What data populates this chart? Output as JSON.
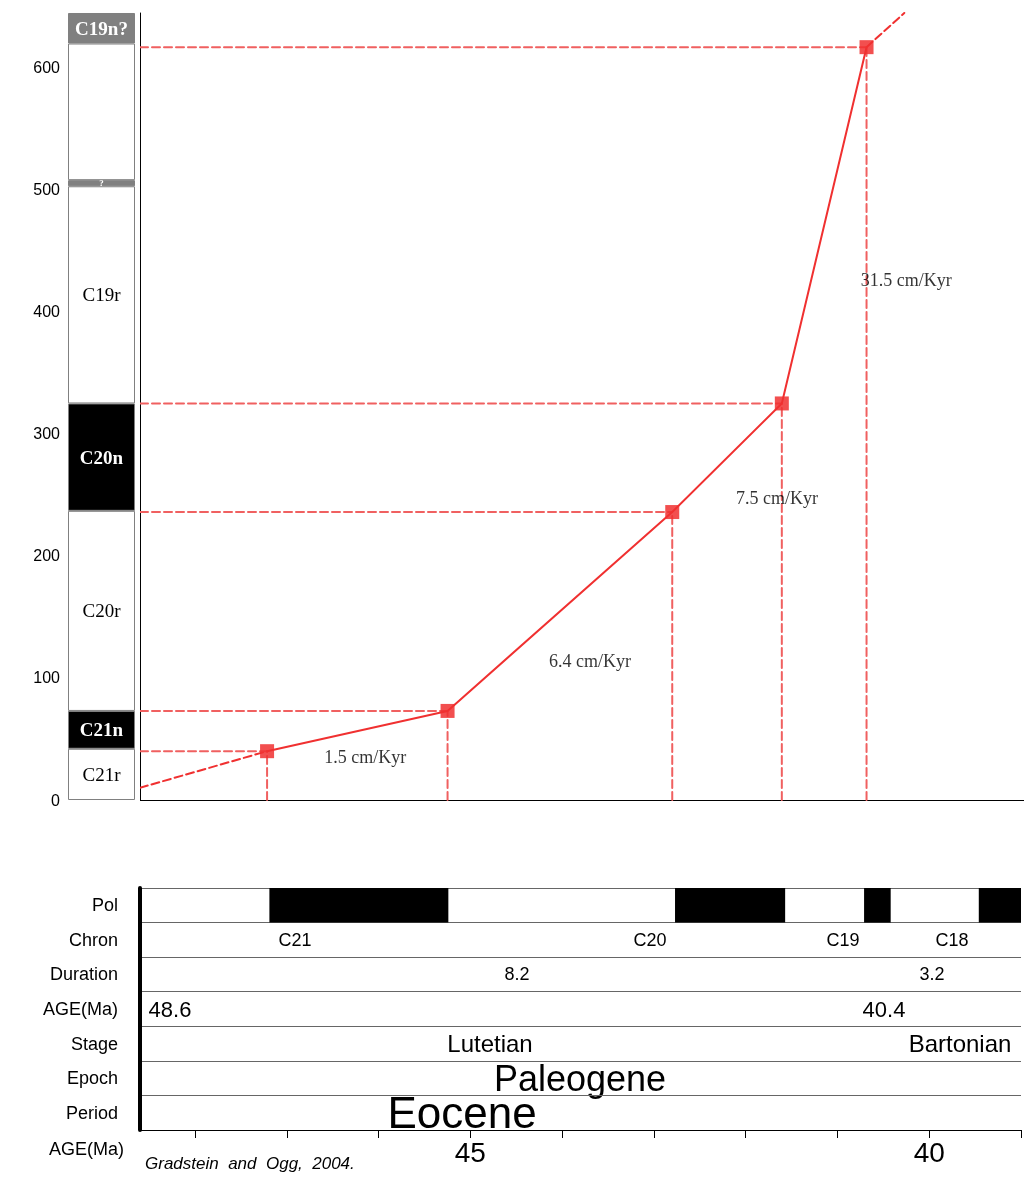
{
  "chart_data": [
    {
      "type": "line",
      "xlim": [
        48.6,
        39.0
      ],
      "ylim": [
        0,
        645
      ],
      "grid": false,
      "legend": false,
      "marker": "square",
      "series": [
        {
          "color": "#f03030",
          "x": [
            47.22,
            45.26,
            42.82,
            41.63,
            40.71
          ],
          "values": [
            40,
            73,
            236,
            325,
            617
          ],
          "line_style": "solid"
        },
        {
          "color": "#f03030",
          "x": [
            48.6,
            47.22
          ],
          "values": [
            10,
            40
          ],
          "line_style": "dashed",
          "marker": "none"
        },
        {
          "color": "#f03030",
          "x": [
            40.71,
            40.3
          ],
          "values": [
            617,
            645
          ],
          "line_style": "dashed",
          "marker": "none"
        },
        {
          "color": "#f06060",
          "x": [
            47.22,
            47.22
          ],
          "values": [
            0,
            40
          ],
          "line_style": "dashed",
          "marker": "none"
        },
        {
          "color": "#f06060",
          "x": [
            45.26,
            45.26
          ],
          "values": [
            0,
            73
          ],
          "line_style": "dashed",
          "marker": "none"
        },
        {
          "color": "#f06060",
          "x": [
            42.82,
            42.82
          ],
          "values": [
            0,
            236
          ],
          "line_style": "dashed",
          "marker": "none"
        },
        {
          "color": "#f06060",
          "x": [
            41.63,
            41.63
          ],
          "values": [
            0,
            325
          ],
          "line_style": "dashed",
          "marker": "none"
        },
        {
          "color": "#f06060",
          "x": [
            40.71,
            40.71
          ],
          "values": [
            0,
            617
          ],
          "line_style": "dashed",
          "marker": "none"
        },
        {
          "color": "#f06060",
          "x": [
            48.6,
            47.22
          ],
          "values": [
            40,
            40
          ],
          "line_style": "dashed",
          "marker": "none"
        },
        {
          "color": "#f06060",
          "x": [
            48.6,
            45.26
          ],
          "values": [
            73,
            73
          ],
          "line_style": "dashed",
          "marker": "none"
        },
        {
          "color": "#f06060",
          "x": [
            48.6,
            42.82
          ],
          "values": [
            236,
            236
          ],
          "line_style": "dashed",
          "marker": "none"
        },
        {
          "color": "#f06060",
          "x": [
            48.6,
            41.63
          ],
          "values": [
            325,
            325
          ],
          "line_style": "dashed",
          "marker": "none"
        },
        {
          "color": "#f06060",
          "x": [
            48.6,
            40.71
          ],
          "values": [
            617,
            617
          ],
          "line_style": "dashed",
          "marker": "none"
        }
      ],
      "annotations": [
        "1.5 cm/Kyr",
        "6.4 cm/Kyr",
        "7.5 cm/Kyr",
        "31.5 cm/Kyr"
      ]
    },
    {
      "type": "bar",
      "stacked": true,
      "categories": [
        null
      ],
      "ylim": [
        0,
        645
      ],
      "yticks": [
        0,
        100,
        200,
        300,
        400,
        500,
        600
      ],
      "tick_labels": "y",
      "grid": false,
      "legend": false,
      "series": [
        {
          "name": "C21r",
          "color": "#ffffff",
          "values": [
            42
          ]
        },
        {
          "name": "C21n",
          "color": "#000000",
          "values": [
            31
          ]
        },
        {
          "name": "C20r",
          "color": "#ffffff",
          "values": [
            164
          ]
        },
        {
          "name": "C20n",
          "color": "#000000",
          "values": [
            88
          ]
        },
        {
          "name": "C19r",
          "color": "#ffffff",
          "values": [
            178
          ]
        },
        {
          "name": "?",
          "color": "#808080",
          "values": [
            5
          ]
        },
        {
          "color": "#ffffff",
          "values": [
            112
          ]
        },
        {
          "name": "C19n?",
          "color": "#808080",
          "values": [
            25
          ]
        }
      ]
    },
    {
      "type": "bar",
      "orientation": "horizontal",
      "categories": [
        "Pol",
        "Chron",
        "Duration",
        "AGE(Ma)",
        "Stage",
        "Epoch",
        "Period"
      ],
      "xlabel": "AGE(Ma)",
      "xlim": [
        48.6,
        39.0
      ],
      "xticks": [
        {
          "value": 48,
          "label": null
        },
        {
          "value": 47,
          "label": null
        },
        {
          "value": 46,
          "label": null
        },
        45,
        {
          "value": 44,
          "label": null
        },
        {
          "value": 43,
          "label": null
        },
        {
          "value": 42,
          "label": null
        },
        {
          "value": 41,
          "label": null
        },
        40,
        {
          "value": 39,
          "label": null
        }
      ],
      "grid": "y",
      "legend": false,
      "series": [
        {
          "color": "#000000",
          "values": [
            1.95,
            null,
            null,
            null,
            null,
            null,
            null
          ],
          "base": [
            45.24,
            null,
            null,
            null,
            null,
            null,
            null
          ]
        },
        {
          "color": "#000000",
          "values": [
            1.2,
            null,
            null,
            null,
            null,
            null,
            null
          ],
          "base": [
            41.57,
            null,
            null,
            null,
            null,
            null,
            null
          ]
        },
        {
          "color": "#000000",
          "values": [
            0.29,
            null,
            null,
            null,
            null,
            null,
            null
          ],
          "base": [
            40.42,
            null,
            null,
            null,
            null,
            null,
            null
          ]
        },
        {
          "color": "#000000",
          "values": [
            0.46,
            null,
            null,
            null,
            null,
            null,
            null
          ],
          "base": [
            39.0,
            null,
            null,
            null,
            null,
            null,
            null
          ]
        }
      ],
      "annotations": [
        "C21",
        "C20",
        "C19",
        "C18",
        "8.2",
        "3.2",
        "48.6",
        "40.4",
        "Lutetian",
        "Bartonian",
        "Paleogene",
        "Eocene",
        "Gradstein  and  Ogg,  2004."
      ]
    }
  ]
}
